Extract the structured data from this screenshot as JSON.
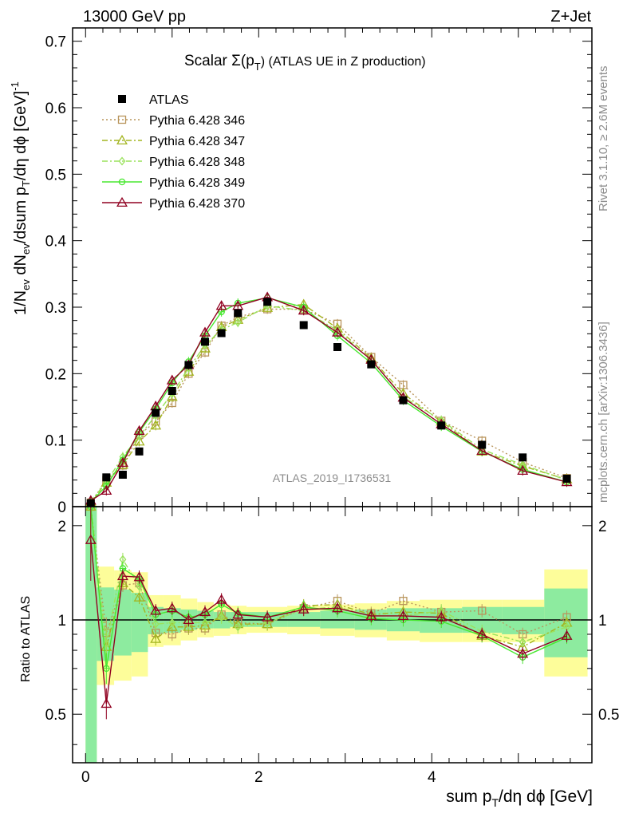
{
  "header": {
    "left": "13000 GeV pp",
    "right": "Z+Jet",
    "title_main": "Scalar Σ(p",
    "title_sub": "T",
    "title_rest": ") (ATLAS UE in Z production)"
  },
  "side_labels": {
    "rivet": "Rivet 3.1.10, ≥ 2.6M events",
    "mcplots": "mcplots.cern.ch [arXiv:1306.3436]"
  },
  "watermark": "ATLAS_2019_I1736531",
  "axes": {
    "ylabel_main": "1/N",
    "ylabel_sub1": "ev",
    "ylabel_mid": " dN",
    "ylabel_sub2": "ev",
    "ylabel_rest": "/dsum p",
    "ylabel_sub3": "T",
    "ylabel_tail": "/dη dϕ [GeV]",
    "ylabel_sup": "-1",
    "ratio_ylabel": "Ratio to ATLAS",
    "xlabel_main": "sum p",
    "xlabel_sub": "T",
    "xlabel_rest": "/dη dϕ [GeV]"
  },
  "legend": [
    {
      "label": "ATLAS"
    },
    {
      "label": "Pythia 6.428 346"
    },
    {
      "label": "Pythia 6.428 347"
    },
    {
      "label": "Pythia 6.428 348"
    },
    {
      "label": "Pythia 6.428 349"
    },
    {
      "label": "Pythia 6.428 370"
    }
  ],
  "chart_data": {
    "type": "line",
    "x_range": [
      -0.15,
      5.85
    ],
    "y_range": [
      0,
      0.72
    ],
    "ratio_range": [
      0.35,
      2.3
    ],
    "x_ticks": [
      "0",
      "2",
      "4"
    ],
    "y_ticks": [
      "0",
      "0.1",
      "0.2",
      "0.3",
      "0.4",
      "0.5",
      "0.6",
      "0.7"
    ],
    "ratio_ticks": [
      "0.5",
      "1",
      "2"
    ],
    "data": {
      "name": "ATLAS",
      "color": "#000000",
      "x": [
        0.06,
        0.24,
        0.43,
        0.62,
        0.81,
        1.0,
        1.19,
        1.38,
        1.57,
        1.76,
        2.1,
        2.52,
        2.91,
        3.3,
        3.67,
        4.11,
        4.58,
        5.05,
        5.56
      ],
      "y": [
        0.005,
        0.044,
        0.048,
        0.083,
        0.141,
        0.174,
        0.213,
        0.248,
        0.261,
        0.291,
        0.308,
        0.273,
        0.24,
        0.214,
        0.16,
        0.122,
        0.093,
        0.074,
        0.042
      ]
    },
    "band_x": [
      0.0,
      0.13,
      0.33,
      0.53,
      0.72,
      0.9,
      1.1,
      1.29,
      1.48,
      1.67,
      1.86,
      2.33,
      2.71,
      3.11,
      3.48,
      3.86,
      4.35,
      4.81,
      5.3,
      5.8
    ],
    "band_total": [
      [
        0.35,
        2.3
      ],
      [
        0.62,
        1.48
      ],
      [
        0.64,
        1.44
      ],
      [
        0.66,
        1.42
      ],
      [
        0.82,
        1.2
      ],
      [
        0.83,
        1.2
      ],
      [
        0.86,
        1.17
      ],
      [
        0.88,
        1.14
      ],
      [
        0.89,
        1.12
      ],
      [
        0.9,
        1.11
      ],
      [
        0.91,
        1.1
      ],
      [
        0.9,
        1.11
      ],
      [
        0.89,
        1.12
      ],
      [
        0.88,
        1.13
      ],
      [
        0.86,
        1.15
      ],
      [
        0.85,
        1.16
      ],
      [
        0.85,
        1.16
      ],
      [
        0.85,
        1.16
      ],
      [
        0.66,
        1.45
      ]
    ],
    "band_stat": [
      [
        0.35,
        2.3
      ],
      [
        0.74,
        1.27
      ],
      [
        0.77,
        1.25
      ],
      [
        0.79,
        1.22
      ],
      [
        0.9,
        1.1
      ],
      [
        0.91,
        1.09
      ],
      [
        0.93,
        1.08
      ],
      [
        0.94,
        1.07
      ],
      [
        0.94,
        1.06
      ],
      [
        0.95,
        1.06
      ],
      [
        0.95,
        1.06
      ],
      [
        0.95,
        1.06
      ],
      [
        0.94,
        1.07
      ],
      [
        0.93,
        1.08
      ],
      [
        0.92,
        1.09
      ],
      [
        0.91,
        1.09
      ],
      [
        0.91,
        1.1
      ],
      [
        0.9,
        1.1
      ],
      [
        0.76,
        1.26
      ]
    ],
    "series": [
      {
        "name": "Pythia 6.428 346",
        "color": "#b9955c",
        "dash": "2,3",
        "marker": "square",
        "y": [
          0.006,
          0.04,
          0.062,
          0.108,
          0.128,
          0.156,
          0.2,
          0.232,
          0.272,
          0.285,
          0.297,
          0.297,
          0.275,
          0.225,
          0.183,
          0.129,
          0.099,
          0.067,
          0.043
        ]
      },
      {
        "name": "Pythia 6.428 347",
        "color": "#a3b520",
        "dash": "7,3,2,3",
        "marker": "triangle",
        "y": [
          0.007,
          0.036,
          0.063,
          0.098,
          0.122,
          0.165,
          0.203,
          0.238,
          0.27,
          0.281,
          0.299,
          0.304,
          0.268,
          0.223,
          0.17,
          0.128,
          0.083,
          0.061,
          0.041
        ]
      },
      {
        "name": "Pythia 6.428 348",
        "color": "#9ae25c",
        "dash": "7,3,2,3",
        "marker": "diamond",
        "y": [
          0.008,
          0.037,
          0.075,
          0.106,
          0.137,
          0.17,
          0.208,
          0.243,
          0.266,
          0.277,
          0.302,
          0.295,
          0.265,
          0.22,
          0.165,
          0.13,
          0.086,
          0.063,
          0.04
        ]
      },
      {
        "name": "Pythia 6.428 349",
        "color": "#48e830",
        "dash": "",
        "marker": "circle",
        "y": [
          0.007,
          0.031,
          0.07,
          0.112,
          0.147,
          0.186,
          0.218,
          0.257,
          0.293,
          0.306,
          0.314,
          0.3,
          0.257,
          0.216,
          0.16,
          0.121,
          0.083,
          0.056,
          0.037
        ]
      },
      {
        "name": "Pythia 6.428 370",
        "color": "#900020",
        "dash": "",
        "marker": "triangle",
        "y": [
          0.009,
          0.024,
          0.066,
          0.114,
          0.151,
          0.19,
          0.213,
          0.262,
          0.302,
          0.302,
          0.315,
          0.295,
          0.262,
          0.221,
          0.164,
          0.124,
          0.084,
          0.054,
          0.037
        ]
      }
    ],
    "ratios": [
      [
        2.3,
        0.91,
        1.29,
        1.31,
        0.91,
        0.9,
        0.94,
        0.94,
        1.04,
        0.98,
        0.97,
        1.09,
        1.15,
        1.05,
        1.15,
        1.06,
        1.07,
        0.9,
        1.02
      ],
      [
        2.3,
        0.82,
        1.31,
        1.18,
        0.87,
        0.95,
        0.95,
        0.96,
        1.03,
        0.97,
        0.97,
        1.11,
        1.12,
        1.04,
        1.06,
        1.05,
        0.89,
        0.82,
        0.98
      ],
      [
        2.3,
        0.84,
        1.56,
        1.28,
        0.97,
        0.98,
        0.98,
        0.98,
        1.02,
        0.95,
        0.98,
        1.08,
        1.1,
        1.03,
        1.03,
        1.07,
        0.92,
        0.85,
        0.95
      ],
      [
        2.3,
        0.7,
        1.46,
        1.35,
        1.04,
        1.07,
        1.02,
        1.04,
        1.12,
        1.05,
        1.02,
        1.1,
        1.07,
        1.01,
        1.0,
        0.99,
        0.89,
        0.76,
        0.88
      ],
      [
        1.8,
        0.54,
        1.38,
        1.37,
        1.07,
        1.09,
        1.0,
        1.06,
        1.16,
        1.04,
        1.02,
        1.08,
        1.09,
        1.03,
        1.03,
        1.02,
        0.9,
        0.78,
        0.89
      ]
    ],
    "title": "Scalar Σ(pT) (ATLAS UE in Z production)",
    "xlabel": "sum pT/dη dϕ [GeV]",
    "ylabel": "1/Nev dNev/dsum pT/dη dϕ [GeV]-1",
    "grid": false,
    "legend_position": "top-left",
    "log_ratio": true
  }
}
